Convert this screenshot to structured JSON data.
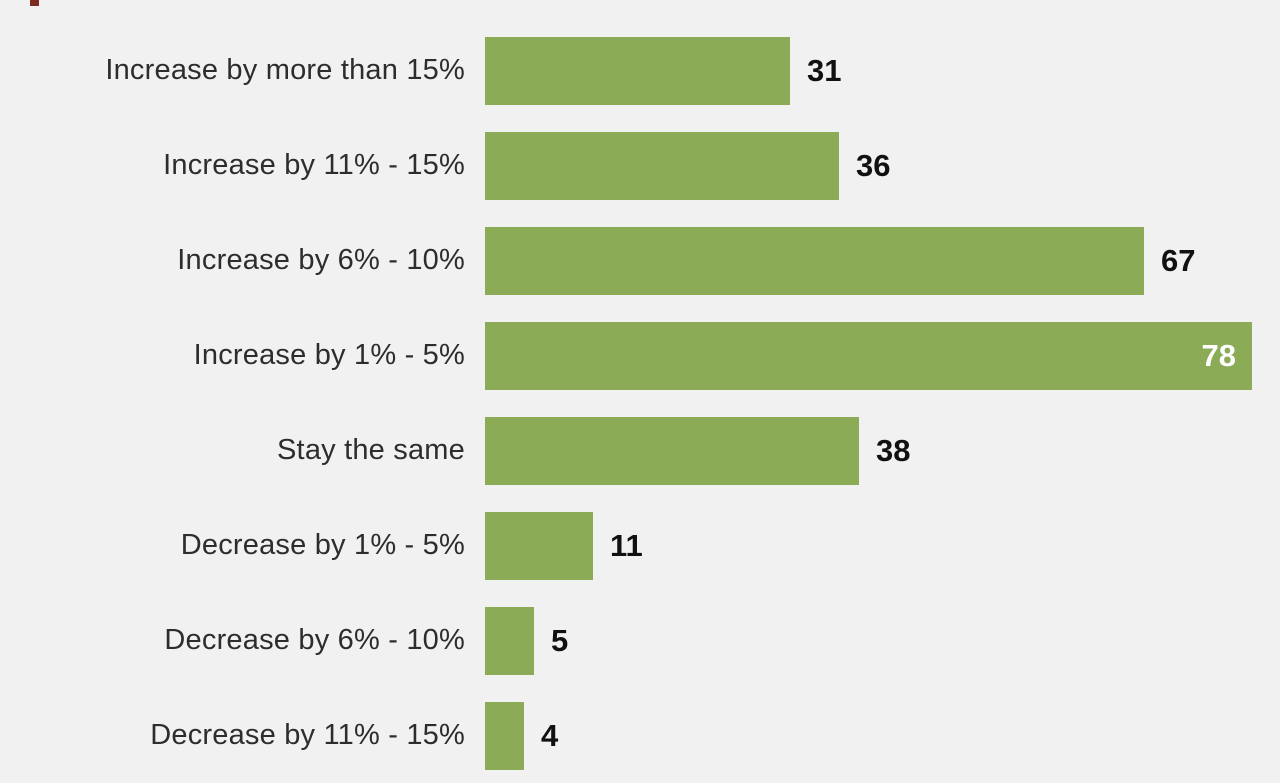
{
  "chart_data": {
    "type": "bar",
    "orientation": "horizontal",
    "title": "",
    "xlabel": "",
    "ylabel": "",
    "legend": "none",
    "grid": false,
    "bar_color": "#8cab57",
    "background_color": "#f1f1f2",
    "value_label_color_outside": "#111111",
    "value_label_color_inside": "#ffffff",
    "max_value": 78,
    "categories": [
      "Increase by more than 15%",
      "Increase by 11% - 15%",
      "Increase by 6% - 10%",
      "Increase by 1% - 5%",
      "Stay the same",
      "Decrease by 1% - 5%",
      "Decrease by 6% - 10%",
      "Decrease by 11% - 15%"
    ],
    "values": [
      31,
      36,
      67,
      78,
      38,
      11,
      5,
      4
    ],
    "rows": [
      {
        "label": "Increase by more than 15%",
        "value": "31",
        "value_inside": false
      },
      {
        "label": "Increase by 11% - 15%",
        "value": "36",
        "value_inside": false
      },
      {
        "label": "Increase by 6% - 10%",
        "value": "67",
        "value_inside": false
      },
      {
        "label": "Increase by 1% - 5%",
        "value": "78",
        "value_inside": true
      },
      {
        "label": "Stay the same",
        "value": "38",
        "value_inside": false
      },
      {
        "label": "Decrease by 1% - 5%",
        "value": "11",
        "value_inside": false
      },
      {
        "label": "Decrease by 6% - 10%",
        "value": "5",
        "value_inside": false
      },
      {
        "label": "Decrease by 11% - 15%",
        "value": "4",
        "value_inside": false
      }
    ]
  }
}
